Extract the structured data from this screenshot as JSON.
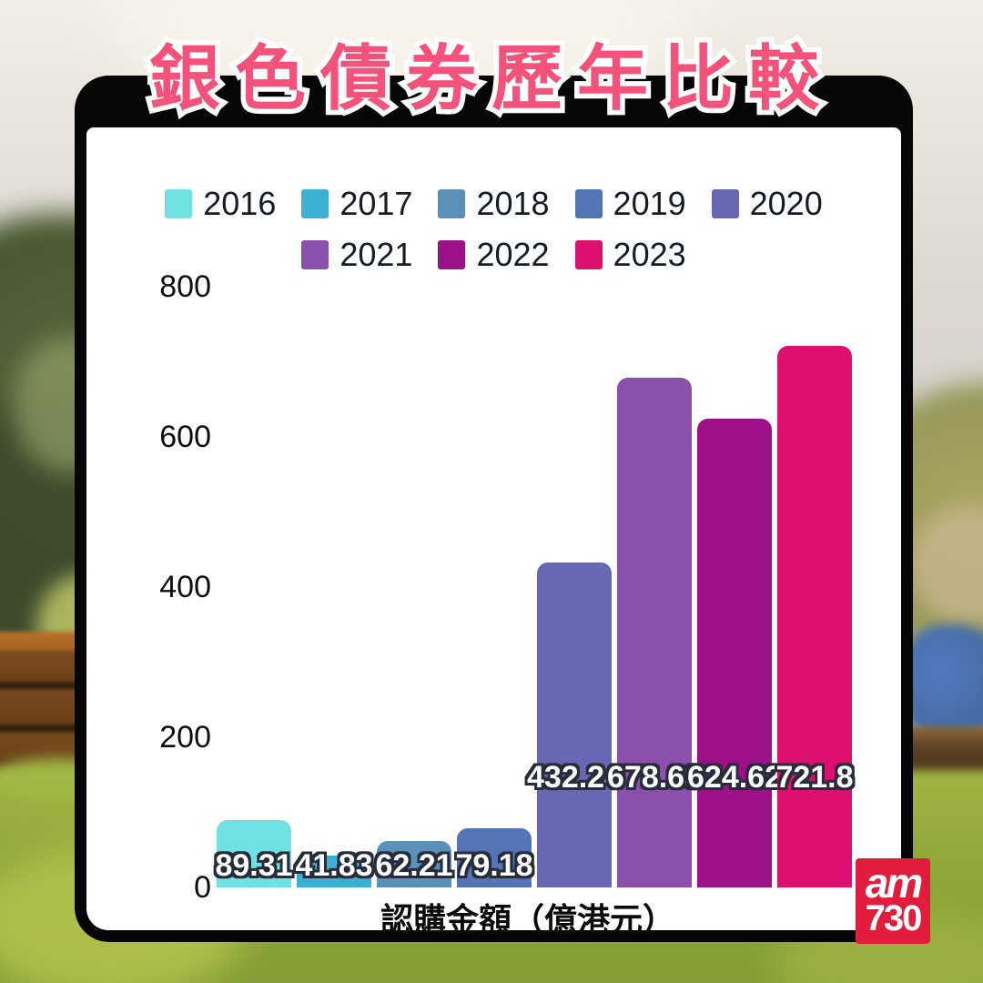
{
  "title": "銀色債券歷年比較",
  "chart_data": {
    "type": "bar",
    "title": "銀色債券歷年比較",
    "categories": [
      "2016",
      "2017",
      "2018",
      "2019",
      "2020",
      "2021",
      "2022",
      "2023"
    ],
    "values": [
      89.31,
      41.83,
      62.21,
      79.18,
      432.24,
      678.63,
      624.62,
      721.8
    ],
    "value_labels": [
      "89.31",
      "41.83",
      "62.21",
      "79.18",
      "432.24",
      "678.63",
      "624.62",
      "721.8"
    ],
    "colors": [
      "#70e1e3",
      "#3cb0d2",
      "#5b91b9",
      "#5474b5",
      "#6867b3",
      "#8b50ab",
      "#9d1088",
      "#dd0f6f"
    ],
    "xlabel": "認購金額（億港元）",
    "ylabel": "",
    "ylim": [
      0,
      800
    ],
    "yticks": [
      0,
      200,
      400,
      600,
      800
    ],
    "legend_rows": [
      [
        "2016",
        "2017",
        "2018",
        "2019",
        "2020"
      ],
      [
        "2021",
        "2022",
        "2023"
      ]
    ],
    "legend_position": "top-center",
    "grid": false
  },
  "logo": {
    "line1": "am",
    "line2": "730",
    "bg_color": "#e21c3d"
  },
  "style": {
    "title_color": "#f4517b",
    "frame_color": "#060606",
    "card_color": "#ffffff"
  }
}
